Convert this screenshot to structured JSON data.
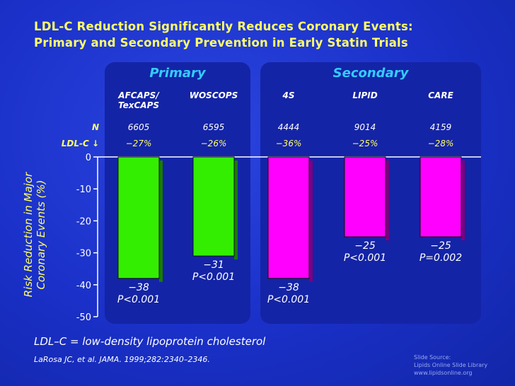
{
  "title": {
    "line1": "LDL-C Reduction Significantly Reduces Coronary Events:",
    "line2": "Primary and Secondary Prevention in Early Statin Trials"
  },
  "groups": {
    "primary": "Primary",
    "secondary": "Secondary"
  },
  "row_labels": {
    "n": "N",
    "ldl": "LDL-C ↓"
  },
  "trials": [
    {
      "name": "AFCAPS/ TexCAPS",
      "n": "6605",
      "ldl": "−27%"
    },
    {
      "name": "WOSCOPS",
      "n": "6595",
      "ldl": "−26%"
    },
    {
      "name": "4S",
      "n": "4444",
      "ldl": "−36%"
    },
    {
      "name": "LIPID",
      "n": "9014",
      "ldl": "−25%"
    },
    {
      "name": "CARE",
      "n": "4159",
      "ldl": "−28%"
    }
  ],
  "chart_data": {
    "type": "bar",
    "categories": [
      "AFCAPS/TexCAPS",
      "WOSCOPS",
      "4S",
      "LIPID",
      "CARE"
    ],
    "values": [
      -38,
      -31,
      -38,
      -25,
      -25
    ],
    "value_labels": [
      "−38",
      "−31",
      "−38",
      "−25",
      "−25"
    ],
    "p_values": [
      "P<0.001",
      "P<0.001",
      "P<0.001",
      "P<0.001",
      "P=0.002"
    ],
    "groups": [
      "Primary",
      "Primary",
      "Secondary",
      "Secondary",
      "Secondary"
    ],
    "ylabel": "Risk Reduction in Major Coronary Events (%)",
    "ylim": [
      -50,
      0
    ],
    "yticks": [
      0,
      -10,
      -20,
      -30,
      -40,
      -50
    ],
    "ytick_labels": [
      "0",
      "-10",
      "-20",
      "-30",
      "-40",
      "-50"
    ],
    "grid": false,
    "colors": {
      "Primary": "#33ee00",
      "Secondary": "#ff00ff"
    }
  },
  "footnote": "LDL–C = low-density lipoprotein cholesterol",
  "citation": "LaRosa JC, et al. JAMA. 1999;282:2340–2346.",
  "source": {
    "line1": "Slide Source:",
    "line2": "Lipids Online Slide Library",
    "line3": "www.lipidsonline.org"
  }
}
